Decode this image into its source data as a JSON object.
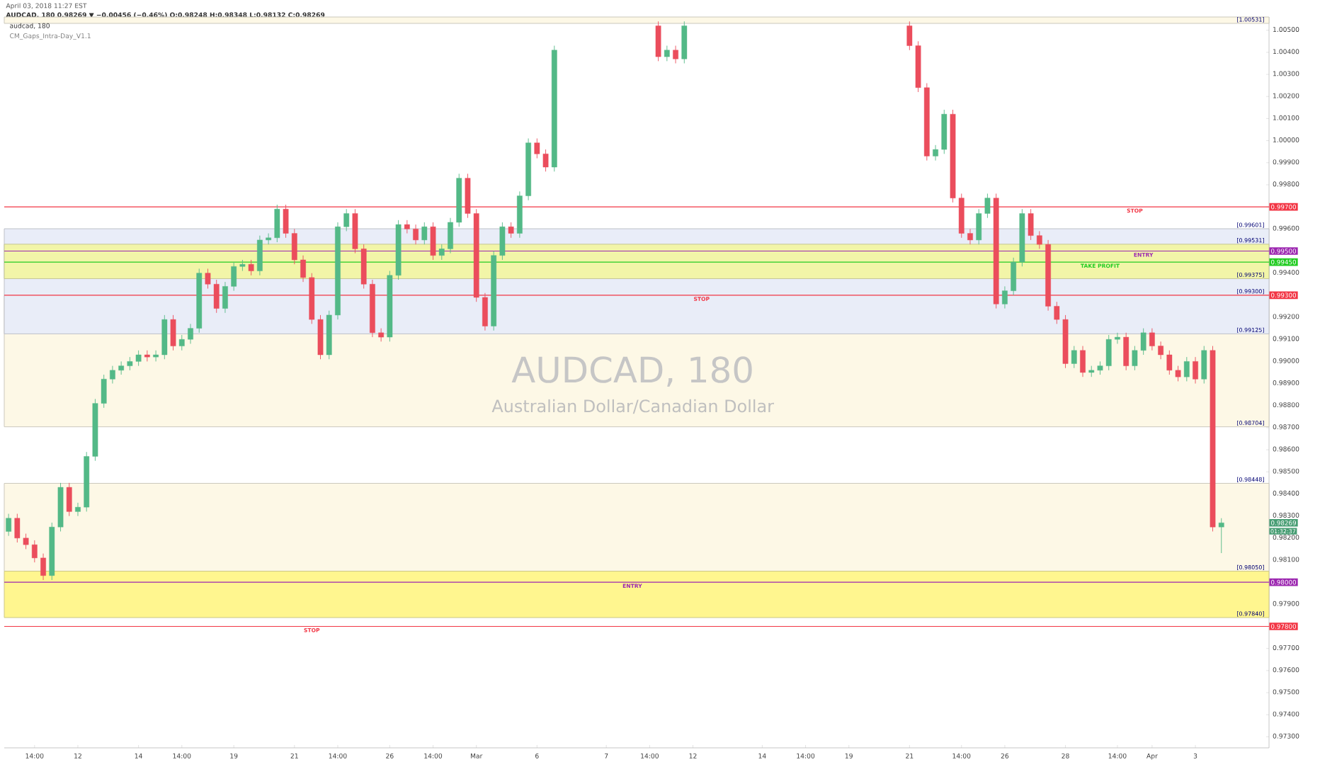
{
  "chart_data": {
    "type": "candlestick",
    "title": "April 03, 2018 11:27 EST",
    "subtitle": "AUDCAD, 180  0.98269 ▼ −0.00456 (−0.46%) O:0.98248 H:0.98348 L:0.98132 C:0.98269",
    "categories": [
      null,
      null,
      null,
      "14:00",
      null,
      null,
      null,
      null,
      "12",
      null,
      null,
      null,
      null,
      null,
      null,
      "14",
      null,
      null,
      null,
      null,
      "14:00",
      null,
      null,
      null,
      null,
      null,
      "19",
      null,
      null,
      null,
      null,
      null,
      null,
      "21",
      null,
      null,
      null,
      null,
      "14:00",
      null,
      null,
      null,
      null,
      null,
      "26",
      null,
      null,
      null,
      null,
      "14:00",
      null,
      null,
      null,
      null,
      "Mar",
      null,
      null,
      null,
      null,
      null,
      null,
      "6",
      null,
      null,
      null,
      null,
      null,
      null,
      null,
      "7",
      null,
      null,
      null,
      null,
      "14:00",
      null,
      null,
      null,
      null,
      "12",
      null,
      null,
      null,
      null,
      null,
      null,
      null,
      "14",
      null,
      null,
      null,
      null,
      "14:00",
      null,
      null,
      null,
      null,
      "19",
      null,
      null,
      null,
      null,
      null,
      null,
      "21",
      null,
      null,
      null,
      null,
      null,
      "14:00",
      null,
      null,
      null,
      null,
      "26",
      null,
      null,
      null,
      null,
      null,
      null,
      "28",
      null,
      null,
      null,
      null,
      null,
      "14:00",
      null,
      null,
      null,
      "Apr",
      null,
      null,
      null,
      null,
      "3",
      null,
      null,
      null,
      null,
      null,
      null,
      null,
      null
    ],
    "ohlc": [
      [
        0.9823,
        0.9831,
        0.9821,
        0.9829
      ],
      [
        0.9829,
        0.9831,
        0.9818,
        0.982
      ],
      [
        0.982,
        0.9822,
        0.9815,
        0.9817
      ],
      [
        0.9817,
        0.9819,
        0.9809,
        0.9811
      ],
      [
        0.9811,
        0.9813,
        0.9801,
        0.9803
      ],
      [
        0.9803,
        0.9827,
        0.9801,
        0.9825
      ],
      [
        0.9825,
        0.9845,
        0.9823,
        0.9843
      ],
      [
        0.9843,
        0.9845,
        0.983,
        0.9832
      ],
      [
        0.9832,
        0.9836,
        0.983,
        0.9834
      ],
      [
        0.9834,
        0.9859,
        0.9832,
        0.9857
      ],
      [
        0.9857,
        0.9883,
        0.9855,
        0.9881
      ],
      [
        0.9881,
        0.9894,
        0.9879,
        0.9892
      ],
      [
        0.9892,
        0.9898,
        0.989,
        0.9896
      ],
      [
        0.9896,
        0.99,
        0.9894,
        0.9898
      ],
      [
        0.9898,
        0.9902,
        0.9896,
        0.99
      ],
      [
        0.99,
        0.9905,
        0.9898,
        0.9903
      ],
      [
        0.9903,
        0.9905,
        0.99,
        0.9902
      ],
      [
        0.9902,
        0.9905,
        0.99,
        0.9903
      ],
      [
        0.9903,
        0.9921,
        0.9901,
        0.9919
      ],
      [
        0.9919,
        0.9921,
        0.9905,
        0.9907
      ],
      [
        0.9907,
        0.9912,
        0.9905,
        0.991
      ],
      [
        0.991,
        0.9917,
        0.9908,
        0.9915
      ],
      [
        0.9915,
        0.9942,
        0.9913,
        0.994
      ],
      [
        0.994,
        0.9942,
        0.9933,
        0.9935
      ],
      [
        0.9935,
        0.9937,
        0.9922,
        0.9924
      ],
      [
        0.9924,
        0.9936,
        0.9922,
        0.9934
      ],
      [
        0.9934,
        0.9945,
        0.9932,
        0.9943
      ],
      [
        0.9943,
        0.9946,
        0.9941,
        0.9944
      ],
      [
        0.9944,
        0.9946,
        0.9939,
        0.9941
      ],
      [
        0.9941,
        0.9957,
        0.9939,
        0.9955
      ],
      [
        0.9955,
        0.9958,
        0.9953,
        0.9956
      ],
      [
        0.9956,
        0.9971,
        0.9954,
        0.9969
      ],
      [
        0.9969,
        0.9971,
        0.9956,
        0.9958
      ],
      [
        0.9958,
        0.996,
        0.9944,
        0.9946
      ],
      [
        0.9946,
        0.9948,
        0.9936,
        0.9938
      ],
      [
        0.9938,
        0.994,
        0.9917,
        0.9919
      ],
      [
        0.9919,
        0.9921,
        0.9901,
        0.9903
      ],
      [
        0.9903,
        0.9923,
        0.9901,
        0.9921
      ],
      [
        0.9921,
        0.9963,
        0.9919,
        0.9961
      ],
      [
        0.9961,
        0.9969,
        0.9959,
        0.9967
      ],
      [
        0.9967,
        0.9969,
        0.9949,
        0.9951
      ],
      [
        0.9951,
        0.9953,
        0.9933,
        0.9935
      ],
      [
        0.9935,
        0.9937,
        0.9911,
        0.9913
      ],
      [
        0.9913,
        0.9915,
        0.9909,
        0.9911
      ],
      [
        0.9911,
        0.9941,
        0.9909,
        0.9939
      ],
      [
        0.9939,
        0.9964,
        0.9937,
        0.9962
      ],
      [
        0.9962,
        0.9964,
        0.9958,
        0.996
      ],
      [
        0.996,
        0.9962,
        0.9953,
        0.9955
      ],
      [
        0.9955,
        0.9963,
        0.9953,
        0.9961
      ],
      [
        0.9961,
        0.9963,
        0.9946,
        0.9948
      ],
      [
        0.9948,
        0.9953,
        0.9946,
        0.9951
      ],
      [
        0.9951,
        0.9965,
        0.9949,
        0.9963
      ],
      [
        0.9963,
        0.9985,
        0.9961,
        0.9983
      ],
      [
        0.9983,
        0.9985,
        0.9965,
        0.9967
      ],
      [
        0.9967,
        0.9969,
        0.9927,
        0.9929
      ],
      [
        0.9929,
        0.9931,
        0.9914,
        0.9916
      ],
      [
        0.9916,
        0.995,
        0.9914,
        0.9948
      ],
      [
        0.9948,
        0.9963,
        0.9946,
        0.9961
      ],
      [
        0.9961,
        0.9963,
        0.9956,
        0.9958
      ],
      [
        0.9958,
        0.9977,
        0.9956,
        0.9975
      ],
      [
        0.9975,
        1.0001,
        0.9973,
        0.9999
      ],
      [
        0.9999,
        1.0001,
        0.9992,
        0.9994
      ],
      [
        0.9994,
        0.9996,
        0.9986,
        0.9988
      ],
      [
        0.9988,
        1.0043,
        0.9986,
        1.0041
      ],
      null,
      null,
      null,
      null,
      null,
      null,
      null,
      null,
      null,
      null,
      null,
      [
        1.0052,
        1.0054,
        1.0036,
        1.0038
      ],
      [
        1.0038,
        1.0043,
        1.0036,
        1.0041
      ],
      [
        1.0041,
        1.0043,
        1.0035,
        1.0037
      ],
      [
        1.0037,
        1.0054,
        1.0035,
        1.0052
      ],
      null,
      null,
      null,
      null,
      null,
      null,
      null,
      null,
      null,
      null,
      null,
      null,
      null,
      null,
      null,
      null,
      null,
      null,
      null,
      null,
      null,
      null,
      null,
      null,
      null,
      [
        1.0052,
        1.0054,
        1.0041,
        1.0043
      ],
      [
        1.0043,
        1.0045,
        1.0022,
        1.0024
      ],
      [
        1.0024,
        1.0026,
        0.9991,
        0.9993
      ],
      [
        0.9993,
        0.9998,
        0.9991,
        0.9996
      ],
      [
        0.9996,
        1.0014,
        0.9994,
        1.0012
      ],
      [
        1.0012,
        1.0014,
        0.9972,
        0.9974
      ],
      [
        0.9974,
        0.9976,
        0.9956,
        0.9958
      ],
      [
        0.9958,
        0.996,
        0.9953,
        0.9955
      ],
      [
        0.9955,
        0.9969,
        0.9953,
        0.9967
      ],
      [
        0.9967,
        0.9976,
        0.9965,
        0.9974
      ],
      [
        0.9974,
        0.9976,
        0.9924,
        0.9926
      ],
      [
        0.9926,
        0.9934,
        0.9924,
        0.9932
      ],
      [
        0.9932,
        0.9947,
        0.993,
        0.9945
      ],
      [
        0.9945,
        0.9969,
        0.9943,
        0.9967
      ],
      [
        0.9967,
        0.9969,
        0.9955,
        0.9957
      ],
      [
        0.9957,
        0.9959,
        0.9951,
        0.9953
      ],
      [
        0.9953,
        0.9955,
        0.9923,
        0.9925
      ],
      [
        0.9925,
        0.9927,
        0.9917,
        0.9919
      ],
      [
        0.9919,
        0.9921,
        0.9897,
        0.9899
      ],
      [
        0.9899,
        0.9907,
        0.9897,
        0.9905
      ],
      [
        0.9905,
        0.9907,
        0.9893,
        0.9895
      ],
      [
        0.9895,
        0.9898,
        0.9893,
        0.9896
      ],
      [
        0.9896,
        0.99,
        0.9894,
        0.9898
      ],
      [
        0.9898,
        0.9912,
        0.9896,
        0.991
      ],
      [
        0.991,
        0.9913,
        0.9908,
        0.9911
      ],
      [
        0.9911,
        0.9913,
        0.9896,
        0.9898
      ],
      [
        0.9898,
        0.9907,
        0.9896,
        0.9905
      ],
      [
        0.9905,
        0.9915,
        0.9903,
        0.9913
      ],
      [
        0.9913,
        0.9915,
        0.9905,
        0.9907
      ],
      [
        0.9907,
        0.9909,
        0.9901,
        0.9903
      ],
      [
        0.9903,
        0.9905,
        0.9894,
        0.9896
      ],
      [
        0.9896,
        0.9898,
        0.9891,
        0.9893
      ],
      [
        0.9893,
        0.9902,
        0.9891,
        0.99
      ],
      [
        0.99,
        0.9902,
        0.989,
        0.9892
      ],
      [
        0.9892,
        0.9907,
        0.989,
        0.9905
      ],
      [
        0.9905,
        0.9907,
        0.9823,
        0.9825
      ],
      [
        0.9825,
        0.9829,
        0.98132,
        0.98269
      ],
      null,
      null,
      null,
      null,
      null
    ],
    "ylim": [
      0.9725,
      1.0056
    ],
    "yticks": [
      {
        "value": 0.973,
        "label": "0.97300"
      },
      {
        "value": 0.974,
        "label": "0.97400"
      },
      {
        "value": 0.975,
        "label": "0.97500"
      },
      {
        "value": 0.976,
        "label": "0.97600"
      },
      {
        "value": 0.977,
        "label": "0.97700"
      },
      {
        "value": 0.978,
        "label": null
      },
      {
        "value": 0.979,
        "label": "0.97900"
      },
      {
        "value": 0.98,
        "label": null
      },
      {
        "value": 0.981,
        "label": "0.98100"
      },
      {
        "value": 0.982,
        "label": "0.98200"
      },
      {
        "value": 0.983,
        "label": "0.98300"
      },
      {
        "value": 0.984,
        "label": "0.98400"
      },
      {
        "value": 0.985,
        "label": "0.98500"
      },
      {
        "value": 0.986,
        "label": "0.98600"
      },
      {
        "value": 0.987,
        "label": "0.98700"
      },
      {
        "value": 0.988,
        "label": "0.98800"
      },
      {
        "value": 0.989,
        "label": "0.98900"
      },
      {
        "value": 0.99,
        "label": "0.99000"
      },
      {
        "value": 0.991,
        "label": "0.99100"
      },
      {
        "value": 0.992,
        "label": "0.99200"
      },
      {
        "value": 0.993,
        "label": null
      },
      {
        "value": 0.994,
        "label": "0.99400"
      },
      {
        "value": 0.995,
        "label": null
      },
      {
        "value": 0.996,
        "label": "0.99600"
      },
      {
        "value": 0.997,
        "label": null
      },
      {
        "value": 0.998,
        "label": "0.99800"
      },
      {
        "value": 0.999,
        "label": "0.99900"
      },
      {
        "value": 1.0,
        "label": "1.00000"
      },
      {
        "value": 1.001,
        "label": "1.00100"
      },
      {
        "value": 1.002,
        "label": "1.00200"
      },
      {
        "value": 1.003,
        "label": "1.00300"
      },
      {
        "value": 1.004,
        "label": "1.00400"
      },
      {
        "value": 1.005,
        "label": "1.00500"
      }
    ],
    "bands": [
      {
        "axis": "y",
        "from": 1.00531,
        "to": 1.0056,
        "color": "#fdf8e6"
      },
      {
        "axis": "y",
        "from": 0.98704,
        "to": 0.993,
        "color": "#fdf8e6"
      },
      {
        "axis": "y",
        "from": 0.99125,
        "to": 0.99601,
        "color": "#e9edf8"
      },
      {
        "axis": "y",
        "from": 0.99375,
        "to": 0.99531,
        "color": "#f2f5a8"
      },
      {
        "axis": "y",
        "from": 0.9805,
        "to": 0.98448,
        "color": "#fdf8e6"
      },
      {
        "axis": "y",
        "from": 0.9784,
        "to": 0.9805,
        "color": "#fff68f"
      }
    ],
    "ref_lines": [
      {
        "axis": "y",
        "value": 0.997,
        "label": "STOP",
        "color": "#f23645"
      },
      {
        "axis": "y",
        "value": 0.995,
        "label": "ENTRY",
        "color": "#9c27b0"
      },
      {
        "axis": "y",
        "value": 0.9945,
        "label": "TAKE PROFIT",
        "color": "#22cc22"
      },
      {
        "axis": "y",
        "value": 0.993,
        "label": "STOP",
        "color": "#f23645"
      },
      {
        "axis": "y",
        "value": 0.98,
        "label": "ENTRY",
        "color": "#9c27b0"
      },
      {
        "axis": "y",
        "value": 0.978,
        "label": "STOP",
        "color": "#f23645"
      }
    ],
    "annotations": [
      "audcad, 180",
      "CM_Gaps_Intra-Day_V1.1",
      "AUDCAD, 180",
      "Australian Dollar/Canadian Dollar",
      "0.98269",
      "01:32:37",
      "0.99700",
      "0.99500",
      "0.99450",
      "0.99300",
      "0.98000",
      "0.97800",
      {
        "text": "[1.00531]",
        "y": 1.00531
      },
      {
        "text": "[0.99601]",
        "y": 0.99601
      },
      {
        "text": "[0.99531]",
        "y": 0.99531
      },
      {
        "text": "[0.99375]",
        "y": 0.99375
      },
      {
        "text": "[0.99300]",
        "y": 0.993
      },
      {
        "text": "[0.99125]",
        "y": 0.99125
      },
      {
        "text": "[0.98704]",
        "y": 0.98704
      },
      {
        "text": "[0.98448]",
        "y": 0.98448
      },
      {
        "text": "[0.98050]",
        "y": 0.9805
      },
      {
        "text": "[0.97840]",
        "y": 0.9784
      }
    ]
  }
}
